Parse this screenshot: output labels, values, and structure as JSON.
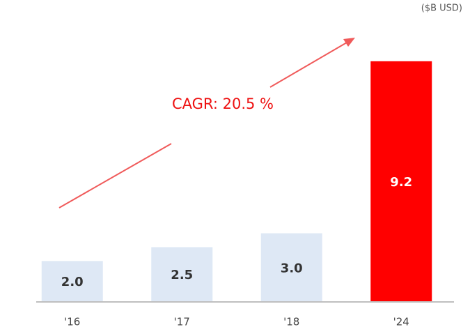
{
  "chart_data": {
    "type": "bar",
    "unit_note": "($B USD)",
    "annotation": "CAGR: 20.5 %",
    "categories": [
      "'16",
      "'17",
      "'18",
      "'24"
    ],
    "values": [
      2.0,
      2.5,
      3.0,
      9.2
    ],
    "value_labels": [
      "2.0",
      "2.5",
      "3.0",
      "9.2"
    ],
    "colors": [
      "#dee8f5",
      "#dee8f5",
      "#dee8f5",
      "#ff0000"
    ],
    "label_colors": [
      "#333333",
      "#333333",
      "#333333",
      "#ffffff"
    ],
    "ylim": [
      0.5,
      10
    ]
  }
}
